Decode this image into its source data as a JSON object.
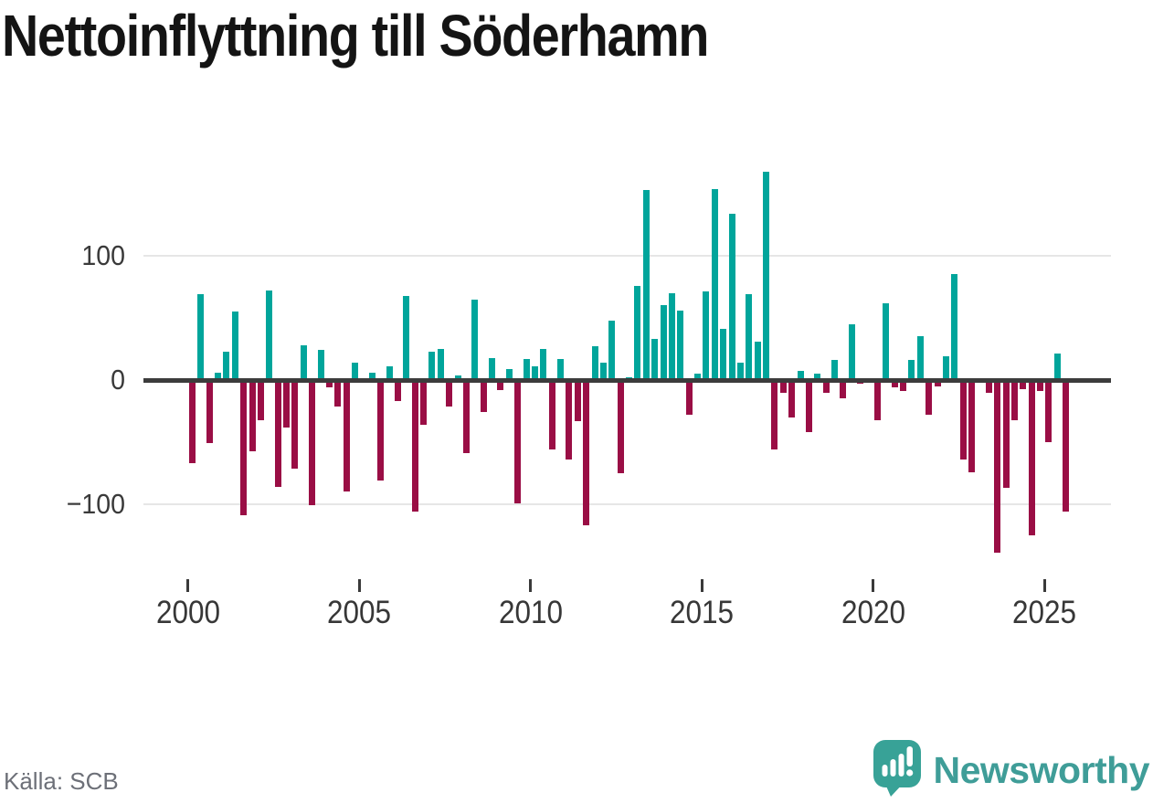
{
  "title": "Nettoinflyttning till Söderhamn",
  "source": "Källa: SCB",
  "branding": {
    "logo_text": "Newsworthy",
    "logo_icon": "bar-chart-speech-bubble"
  },
  "colors": {
    "positive": "#00a59b",
    "negative": "#9a0e45",
    "zero_line": "#3c3c3c",
    "gridline": "#e6e6e6",
    "axis_text": "#3a3a3a",
    "title_text": "#141414",
    "source_text": "#6d7078",
    "logo_teal": "#38a297"
  },
  "chart_data": {
    "type": "bar",
    "title": "Nettoinflyttning till Söderhamn",
    "frequency": "quarterly",
    "x_start": "2000Q1",
    "x_end": "2025Q3",
    "grid": "horizontal",
    "ylim": [
      -150,
      180
    ],
    "y_gridlines": [
      100,
      -100
    ],
    "y_ticks": [
      {
        "value": 100,
        "label": "100"
      },
      {
        "value": 0,
        "label": "0"
      },
      {
        "value": -100,
        "label": "−100"
      }
    ],
    "x_ticks": [
      {
        "year": 2000,
        "label": "2000"
      },
      {
        "year": 2005,
        "label": "2005"
      },
      {
        "year": 2010,
        "label": "2010"
      },
      {
        "year": 2015,
        "label": "2015"
      },
      {
        "year": 2020,
        "label": "2020"
      },
      {
        "year": 2025,
        "label": "2025"
      }
    ],
    "values": [
      -67,
      69,
      -51,
      6,
      23,
      55,
      -109,
      -57,
      -32,
      72,
      -86,
      -38,
      -71,
      28,
      -101,
      24,
      -6,
      -21,
      -90,
      14,
      1,
      6,
      -81,
      11,
      -17,
      68,
      -106,
      -36,
      23,
      25,
      -21,
      4,
      -59,
      65,
      -26,
      18,
      -8,
      9,
      -99,
      17,
      11,
      25,
      -56,
      17,
      -64,
      -33,
      -117,
      27,
      14,
      48,
      -75,
      2,
      76,
      153,
      33,
      60,
      70,
      56,
      -28,
      5,
      71,
      154,
      41,
      134,
      14,
      69,
      31,
      168,
      -56,
      -10,
      -30,
      7,
      -42,
      5,
      -10,
      16,
      -15,
      45,
      -3,
      1,
      -32,
      62,
      -6,
      -9,
      16,
      35,
      -28,
      -5,
      19,
      85,
      -64,
      -74,
      1,
      -10,
      -139,
      -87,
      -32,
      -7,
      -125,
      -9,
      -50,
      21,
      -106
    ]
  }
}
